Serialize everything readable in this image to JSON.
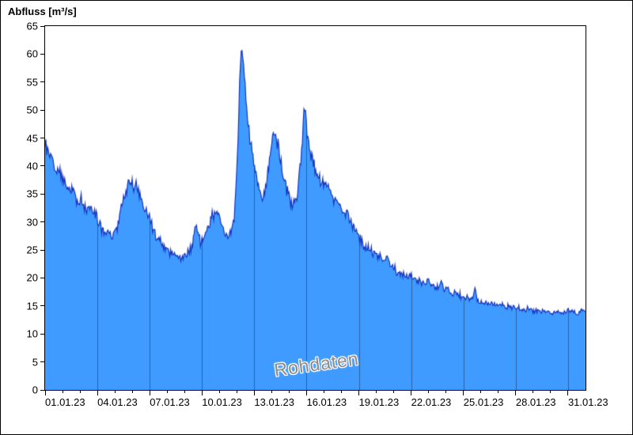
{
  "chart_data": {
    "type": "area",
    "title": "Abfluss [m³/s]",
    "ylabel": "Abfluss [m³/s]",
    "xlabel": "",
    "watermark": "Rohdaten",
    "legend": "none",
    "grid": "vertical-gridlines-inside-area",
    "x_range": [
      1,
      32
    ],
    "y_range": [
      0,
      65
    ],
    "y_ticks": [
      0,
      5,
      10,
      15,
      20,
      25,
      30,
      35,
      40,
      45,
      50,
      55,
      60,
      65
    ],
    "x_ticks": [
      {
        "day": 1,
        "label": "01.01.23"
      },
      {
        "day": 4,
        "label": "04.01.23"
      },
      {
        "day": 7,
        "label": "07.01.23"
      },
      {
        "day": 10,
        "label": "10.01.23"
      },
      {
        "day": 13,
        "label": "13.01.23"
      },
      {
        "day": 16,
        "label": "16.01.23"
      },
      {
        "day": 19,
        "label": "19.01.23"
      },
      {
        "day": 22,
        "label": "22.01.23"
      },
      {
        "day": 25,
        "label": "25.01.23"
      },
      {
        "day": 28,
        "label": "28.01.23"
      },
      {
        "day": 31,
        "label": "31.01.23"
      }
    ],
    "gridline_days": [
      4,
      7,
      10,
      13,
      16,
      19,
      22,
      25,
      28,
      31
    ],
    "minor_tick_step_days": 1,
    "colors": {
      "fill": "#3f9bff",
      "line": "#1536c0",
      "gridline": "rgba(20,40,90,0.5)",
      "axis": "#000000",
      "watermark": "#8c8c8c",
      "background": "#ffffff"
    },
    "noise": {
      "seed": 12,
      "step_days": 0.045,
      "amp_factor": 0.025,
      "amp_min": 0.18,
      "amp_max": 0.9,
      "spread": 1.8
    },
    "series": [
      {
        "name": "Rohdaten",
        "unit": "m³/s",
        "keypoints": [
          [
            1.0,
            44.5
          ],
          [
            1.1,
            43.2
          ],
          [
            1.25,
            41.8
          ],
          [
            1.4,
            41.3
          ],
          [
            1.55,
            40.2
          ],
          [
            1.7,
            39.3
          ],
          [
            1.85,
            39.6
          ],
          [
            2.0,
            38.2
          ],
          [
            2.15,
            37.2
          ],
          [
            2.3,
            36.6
          ],
          [
            2.5,
            35.8
          ],
          [
            2.7,
            35.2
          ],
          [
            2.85,
            33.6
          ],
          [
            3.0,
            33.2
          ],
          [
            3.1,
            34.0
          ],
          [
            3.2,
            33.0
          ],
          [
            3.35,
            32.4
          ],
          [
            3.5,
            33.0
          ],
          [
            3.65,
            32.6
          ],
          [
            3.8,
            31.8
          ],
          [
            3.95,
            31.2
          ],
          [
            4.1,
            30.2
          ],
          [
            4.25,
            29.0
          ],
          [
            4.4,
            28.6
          ],
          [
            4.55,
            28.2
          ],
          [
            4.7,
            27.8
          ],
          [
            4.85,
            27.6
          ],
          [
            5.0,
            28.2
          ],
          [
            5.15,
            29.4
          ],
          [
            5.3,
            31.5
          ],
          [
            5.45,
            33.5
          ],
          [
            5.6,
            35.2
          ],
          [
            5.75,
            36.4
          ],
          [
            5.9,
            37.2
          ],
          [
            6.05,
            36.8
          ],
          [
            6.2,
            37.0
          ],
          [
            6.35,
            35.6
          ],
          [
            6.5,
            34.0
          ],
          [
            6.65,
            32.6
          ],
          [
            6.8,
            31.6
          ],
          [
            7.0,
            30.2
          ],
          [
            7.2,
            28.8
          ],
          [
            7.4,
            27.6
          ],
          [
            7.6,
            26.6
          ],
          [
            7.8,
            25.8
          ],
          [
            8.0,
            25.2
          ],
          [
            8.2,
            24.6
          ],
          [
            8.4,
            24.2
          ],
          [
            8.6,
            23.8
          ],
          [
            8.8,
            23.6
          ],
          [
            9.0,
            23.9
          ],
          [
            9.2,
            24.4
          ],
          [
            9.4,
            25.6
          ],
          [
            9.55,
            28.0
          ],
          [
            9.65,
            29.3
          ],
          [
            9.75,
            27.8
          ],
          [
            9.9,
            26.6
          ],
          [
            10.05,
            26.9
          ],
          [
            10.2,
            27.6
          ],
          [
            10.35,
            29.0
          ],
          [
            10.5,
            30.6
          ],
          [
            10.65,
            31.4
          ],
          [
            10.8,
            32.2
          ],
          [
            10.95,
            31.0
          ],
          [
            11.1,
            29.6
          ],
          [
            11.25,
            28.4
          ],
          [
            11.4,
            27.6
          ],
          [
            11.55,
            27.3
          ],
          [
            11.7,
            28.4
          ],
          [
            11.85,
            31.0
          ],
          [
            11.95,
            36.0
          ],
          [
            12.05,
            44.0
          ],
          [
            12.15,
            54.0
          ],
          [
            12.22,
            59.5
          ],
          [
            12.28,
            61.2
          ],
          [
            12.35,
            59.0
          ],
          [
            12.45,
            54.5
          ],
          [
            12.55,
            50.0
          ],
          [
            12.7,
            46.0
          ],
          [
            12.85,
            43.0
          ],
          [
            13.0,
            40.5
          ],
          [
            13.15,
            38.0
          ],
          [
            13.3,
            36.2
          ],
          [
            13.45,
            34.8
          ],
          [
            13.6,
            35.6
          ],
          [
            13.75,
            38.0
          ],
          [
            13.9,
            42.0
          ],
          [
            14.05,
            45.0
          ],
          [
            14.15,
            46.6
          ],
          [
            14.25,
            45.6
          ],
          [
            14.4,
            43.0
          ],
          [
            14.55,
            40.0
          ],
          [
            14.7,
            37.6
          ],
          [
            14.85,
            35.8
          ],
          [
            15.0,
            34.4
          ],
          [
            15.15,
            33.4
          ],
          [
            15.3,
            33.0
          ],
          [
            15.45,
            34.6
          ],
          [
            15.6,
            38.5
          ],
          [
            15.75,
            45.0
          ],
          [
            15.85,
            50.8
          ],
          [
            15.95,
            48.5
          ],
          [
            16.1,
            44.5
          ],
          [
            16.25,
            42.0
          ],
          [
            16.4,
            40.4
          ],
          [
            16.55,
            39.2
          ],
          [
            16.7,
            38.0
          ],
          [
            16.85,
            37.0
          ],
          [
            17.0,
            36.8
          ],
          [
            17.15,
            37.4
          ],
          [
            17.3,
            35.8
          ],
          [
            17.45,
            34.8
          ],
          [
            17.6,
            34.0
          ],
          [
            17.75,
            33.2
          ],
          [
            17.9,
            32.6
          ],
          [
            18.05,
            32.0
          ],
          [
            18.2,
            31.4
          ],
          [
            18.35,
            31.6
          ],
          [
            18.5,
            30.6
          ],
          [
            18.65,
            29.6
          ],
          [
            18.8,
            28.6
          ],
          [
            19.0,
            27.2
          ],
          [
            19.2,
            26.2
          ],
          [
            19.4,
            25.4
          ],
          [
            19.6,
            25.0
          ],
          [
            19.8,
            24.6
          ],
          [
            20.0,
            24.2
          ],
          [
            20.2,
            23.9
          ],
          [
            20.4,
            23.6
          ],
          [
            20.6,
            23.2
          ],
          [
            20.8,
            22.6
          ],
          [
            21.0,
            21.8
          ],
          [
            21.2,
            21.2
          ],
          [
            21.4,
            20.8
          ],
          [
            21.6,
            20.6
          ],
          [
            21.8,
            20.4
          ],
          [
            22.0,
            20.2
          ],
          [
            22.2,
            19.8
          ],
          [
            22.4,
            19.5
          ],
          [
            22.6,
            19.2
          ],
          [
            22.8,
            19.0
          ],
          [
            23.0,
            19.4
          ],
          [
            23.2,
            18.8
          ],
          [
            23.4,
            18.4
          ],
          [
            23.6,
            18.3
          ],
          [
            23.75,
            19.6
          ],
          [
            23.9,
            18.2
          ],
          [
            24.1,
            17.8
          ],
          [
            24.3,
            17.5
          ],
          [
            24.5,
            17.2
          ],
          [
            24.7,
            17.0
          ],
          [
            24.9,
            16.7
          ],
          [
            25.1,
            16.5
          ],
          [
            25.3,
            16.3
          ],
          [
            25.5,
            16.2
          ],
          [
            25.65,
            17.9
          ],
          [
            25.8,
            16.1
          ],
          [
            26.0,
            15.8
          ],
          [
            26.3,
            15.6
          ],
          [
            26.6,
            15.4
          ],
          [
            26.9,
            15.2
          ],
          [
            27.2,
            15.1
          ],
          [
            27.5,
            15.0
          ],
          [
            27.8,
            14.8
          ],
          [
            28.1,
            14.7
          ],
          [
            28.4,
            14.5
          ],
          [
            28.7,
            14.4
          ],
          [
            29.0,
            14.2
          ],
          [
            29.3,
            14.1
          ],
          [
            29.6,
            14.0
          ],
          [
            29.9,
            13.9
          ],
          [
            30.1,
            13.5
          ],
          [
            30.3,
            13.8
          ],
          [
            30.5,
            13.9
          ],
          [
            30.7,
            13.7
          ],
          [
            31.0,
            14.1
          ],
          [
            31.3,
            13.9
          ],
          [
            31.6,
            13.7
          ],
          [
            31.8,
            14.3
          ],
          [
            32.0,
            14.0
          ]
        ]
      }
    ]
  }
}
